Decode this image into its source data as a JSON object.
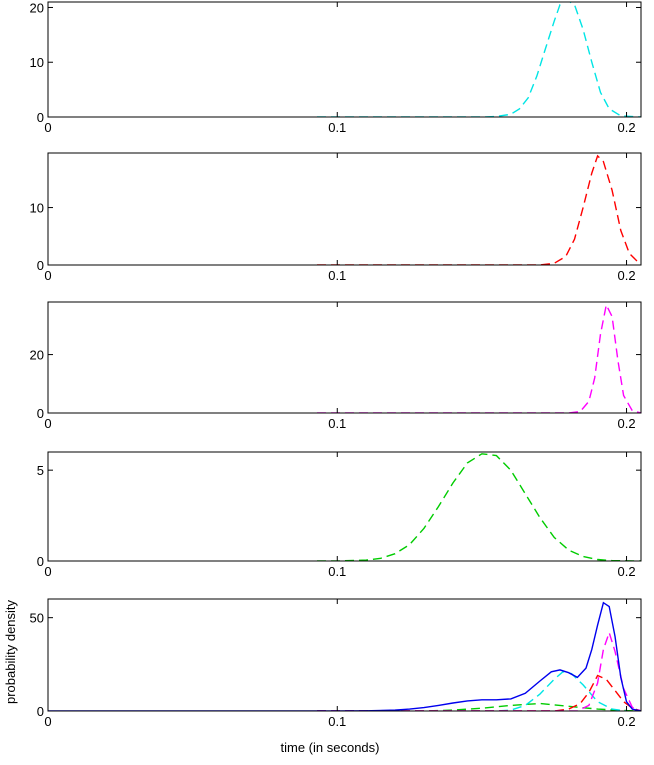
{
  "figure": {
    "ylabel": "probability density",
    "xlabel": "time (in seconds)"
  },
  "chart_data": [
    {
      "type": "line",
      "xlim": [
        0,
        0.205
      ],
      "ylim": [
        0,
        21
      ],
      "xticks": [
        0,
        0.1,
        0.2
      ],
      "xtick_labels": [
        "0",
        "0.1",
        "0.2"
      ],
      "yticks": [
        0,
        10,
        20
      ],
      "ytick_labels": [
        "0",
        "10",
        "20"
      ],
      "series": [
        {
          "color": "#00e5e5",
          "style": "dashed",
          "x": [
            0.093,
            0.1,
            0.11,
            0.12,
            0.13,
            0.14,
            0.15,
            0.155,
            0.16,
            0.163,
            0.166,
            0.169,
            0.172,
            0.175,
            0.177,
            0.179,
            0.182,
            0.185,
            0.188,
            0.191,
            0.194,
            0.198,
            0.205
          ],
          "y": [
            0,
            0,
            0,
            0,
            0,
            0,
            0,
            0.1,
            0.5,
            1.5,
            3.5,
            7.5,
            12.5,
            17.5,
            20.5,
            21.5,
            20.5,
            16,
            10,
            4.5,
            1.5,
            0.2,
            0
          ]
        }
      ]
    },
    {
      "type": "line",
      "xlim": [
        0,
        0.205
      ],
      "ylim": [
        0,
        19.5
      ],
      "xticks": [
        0,
        0.1,
        0.2
      ],
      "xtick_labels": [
        "0",
        "0.1",
        "0.2"
      ],
      "yticks": [
        0,
        10
      ],
      "ytick_labels": [
        "0",
        "10"
      ],
      "series": [
        {
          "color": "#ff0000",
          "style": "dashed",
          "x": [
            0.093,
            0.12,
            0.15,
            0.17,
            0.175,
            0.179,
            0.182,
            0.185,
            0.188,
            0.19,
            0.192,
            0.195,
            0.198,
            0.201,
            0.205
          ],
          "y": [
            0,
            0,
            0,
            0,
            0.3,
            1.5,
            4.5,
            10,
            16,
            19,
            18,
            13,
            6,
            2,
            0
          ]
        }
      ]
    },
    {
      "type": "line",
      "xlim": [
        0,
        0.205
      ],
      "ylim": [
        0,
        38
      ],
      "xticks": [
        0,
        0.1,
        0.2
      ],
      "xtick_labels": [
        "0",
        "0.1",
        "0.2"
      ],
      "yticks": [
        0,
        20
      ],
      "ytick_labels": [
        "0",
        "20"
      ],
      "series": [
        {
          "color": "#ff00ff",
          "style": "dashed",
          "x": [
            0.093,
            0.12,
            0.15,
            0.18,
            0.184,
            0.187,
            0.189,
            0.191,
            0.193,
            0.195,
            0.197,
            0.199,
            0.202,
            0.205
          ],
          "y": [
            0,
            0,
            0,
            0,
            0.5,
            4,
            12,
            27,
            37,
            33,
            18,
            6,
            0.8,
            0
          ]
        }
      ]
    },
    {
      "type": "line",
      "xlim": [
        0,
        0.205
      ],
      "ylim": [
        0,
        6
      ],
      "xticks": [
        0,
        0.1,
        0.2
      ],
      "xtick_labels": [
        "0",
        "0.1",
        "0.2"
      ],
      "yticks": [
        0,
        5
      ],
      "ytick_labels": [
        "0",
        "5"
      ],
      "series": [
        {
          "color": "#00cc00",
          "style": "dashed",
          "x": [
            0.093,
            0.1,
            0.11,
            0.115,
            0.12,
            0.125,
            0.13,
            0.135,
            0.14,
            0.145,
            0.15,
            0.155,
            0.16,
            0.165,
            0.17,
            0.175,
            0.18,
            0.185,
            0.19,
            0.195,
            0.205
          ],
          "y": [
            0,
            0,
            0.05,
            0.15,
            0.4,
            0.9,
            1.8,
            3,
            4.3,
            5.4,
            5.9,
            5.8,
            5,
            3.7,
            2.4,
            1.3,
            0.6,
            0.25,
            0.08,
            0.02,
            0
          ]
        }
      ]
    },
    {
      "type": "line",
      "xlim": [
        0,
        0.205
      ],
      "ylim": [
        0,
        60
      ],
      "xticks": [
        0,
        0.1,
        0.2
      ],
      "xtick_labels": [
        "0",
        "0.1",
        "0.2"
      ],
      "yticks": [
        0,
        50
      ],
      "ytick_labels": [
        "0",
        "50"
      ],
      "series": [
        {
          "color": "#00cc00",
          "style": "dashed",
          "x": [
            0.093,
            0.13,
            0.14,
            0.15,
            0.16,
            0.17,
            0.18,
            0.19,
            0.2,
            0.205
          ],
          "y": [
            0,
            0,
            0.5,
            1.5,
            3,
            4,
            2.5,
            1,
            0.2,
            0
          ]
        },
        {
          "color": "#00e5e5",
          "style": "dashed",
          "x": [
            0.093,
            0.155,
            0.16,
            0.165,
            0.17,
            0.175,
            0.178,
            0.181,
            0.185,
            0.19,
            0.195,
            0.2
          ],
          "y": [
            0,
            0,
            0.5,
            3,
            9,
            17,
            21,
            20,
            14,
            5,
            1,
            0
          ]
        },
        {
          "color": "#ff0000",
          "style": "dashed",
          "x": [
            0.093,
            0.175,
            0.18,
            0.184,
            0.187,
            0.19,
            0.193,
            0.196,
            0.199,
            0.202,
            0.205
          ],
          "y": [
            0,
            0,
            1,
            4,
            10,
            19,
            17,
            11,
            5,
            1.5,
            0
          ]
        },
        {
          "color": "#ff00ff",
          "style": "dashed",
          "x": [
            0.093,
            0.183,
            0.187,
            0.19,
            0.192,
            0.194,
            0.196,
            0.199,
            0.202,
            0.205
          ],
          "y": [
            0,
            0,
            3,
            15,
            33,
            42,
            32,
            12,
            2,
            0
          ]
        },
        {
          "color": "#0000ee",
          "style": "solid",
          "x": [
            0,
            0.093,
            0.1,
            0.11,
            0.12,
            0.125,
            0.13,
            0.135,
            0.14,
            0.145,
            0.15,
            0.155,
            0.16,
            0.165,
            0.17,
            0.174,
            0.177,
            0.18,
            0.183,
            0.186,
            0.188,
            0.19,
            0.192,
            0.194,
            0.196,
            0.198,
            0.2,
            0.202,
            0.205
          ],
          "y": [
            0,
            0,
            0,
            0.1,
            0.5,
            1,
            1.8,
            3,
            4.3,
            5.4,
            6,
            6,
            6.5,
            9.5,
            16,
            21,
            22,
            20.5,
            18,
            23,
            33,
            46,
            58,
            56,
            40,
            18,
            5,
            1,
            0
          ]
        }
      ]
    }
  ]
}
